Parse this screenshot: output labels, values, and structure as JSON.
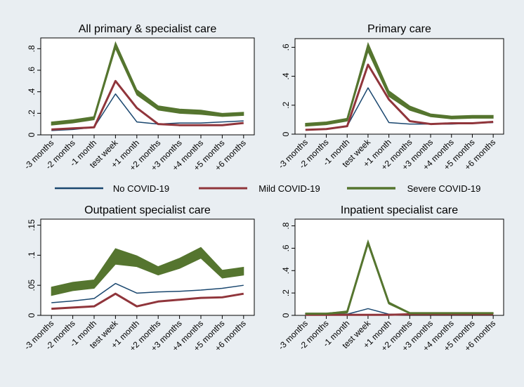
{
  "colors": {
    "no_covid": "#1a476f",
    "mild_covid": "#90353b",
    "severe_covid": "#55752f",
    "severe_band": "#55752f",
    "background": "#e9eef2",
    "plot_background": "#ffffff"
  },
  "legend": {
    "items": [
      "No COVID-19",
      "Mild COVID-19",
      "Severe COVID-19"
    ],
    "placement": "center"
  },
  "chart_data": [
    {
      "type": "line",
      "title": "All primary & specialist care",
      "xlabel": "",
      "ylabel": "",
      "categories": [
        "-3 months",
        "-2 months",
        "-1 month",
        "test week",
        "+1 month",
        "+2 months",
        "+3 months",
        "+4 months",
        "+5 months",
        "+6 months"
      ],
      "ylim": [
        0,
        0.9
      ],
      "yticks": [
        0,
        0.2,
        0.4,
        0.6,
        0.8
      ],
      "ytick_labels": [
        "0",
        ".2",
        ".4",
        ".6",
        ".8"
      ],
      "series": [
        {
          "name": "No COVID-19",
          "values": [
            0.04,
            0.05,
            0.07,
            0.38,
            0.12,
            0.1,
            0.11,
            0.11,
            0.12,
            0.13
          ]
        },
        {
          "name": "Mild COVID-19",
          "values": [
            0.05,
            0.06,
            0.07,
            0.5,
            0.25,
            0.1,
            0.09,
            0.09,
            0.09,
            0.11
          ]
        },
        {
          "name": "Severe COVID-19",
          "values": [
            0.11,
            0.13,
            0.16,
            0.83,
            0.39,
            0.25,
            0.22,
            0.21,
            0.19,
            0.2
          ],
          "band": [
            [
              0.09,
              0.12
            ],
            [
              0.11,
              0.14
            ],
            [
              0.14,
              0.17
            ],
            [
              0.8,
              0.86
            ],
            [
              0.37,
              0.42
            ],
            [
              0.23,
              0.27
            ],
            [
              0.2,
              0.24
            ],
            [
              0.19,
              0.23
            ],
            [
              0.17,
              0.2
            ],
            [
              0.18,
              0.21
            ]
          ]
        }
      ]
    },
    {
      "type": "line",
      "title": "Primary care",
      "xlabel": "",
      "ylabel": "",
      "categories": [
        "-3 months",
        "-2 months",
        "-1 month",
        "test week",
        "+1 month",
        "+2 months",
        "+3 months",
        "+4 months",
        "+5 months",
        "+6 months"
      ],
      "ylim": [
        0,
        0.66
      ],
      "yticks": [
        0,
        0.2,
        0.4,
        0.6
      ],
      "ytick_labels": [
        "0",
        ".2",
        ".4",
        ".6"
      ],
      "series": [
        {
          "name": "No COVID-19",
          "values": [
            0.03,
            0.035,
            0.055,
            0.32,
            0.08,
            0.07,
            0.07,
            0.07,
            0.075,
            0.08
          ]
        },
        {
          "name": "Mild COVID-19",
          "values": [
            0.03,
            0.035,
            0.055,
            0.48,
            0.24,
            0.09,
            0.07,
            0.075,
            0.075,
            0.085
          ]
        },
        {
          "name": "Severe COVID-19",
          "values": [
            0.065,
            0.075,
            0.1,
            0.6,
            0.28,
            0.18,
            0.13,
            0.115,
            0.12,
            0.12
          ],
          "band": [
            [
              0.055,
              0.075
            ],
            [
              0.065,
              0.085
            ],
            [
              0.09,
              0.11
            ],
            [
              0.57,
              0.63
            ],
            [
              0.26,
              0.3
            ],
            [
              0.165,
              0.195
            ],
            [
              0.12,
              0.14
            ],
            [
              0.105,
              0.125
            ],
            [
              0.11,
              0.13
            ],
            [
              0.11,
              0.13
            ]
          ]
        }
      ]
    },
    {
      "type": "line",
      "title": "Outpatient specialist care",
      "xlabel": "",
      "ylabel": "",
      "categories": [
        "-3 months",
        "-2 months",
        "-1 month",
        "test week",
        "+1 month",
        "+2 months",
        "+3 months",
        "+4 months",
        "+5 months",
        "+6 months"
      ],
      "ylim": [
        0,
        0.16
      ],
      "yticks": [
        0,
        0.05,
        0.1,
        0.15
      ],
      "ytick_labels": [
        "0",
        ".05",
        ".1",
        ".15"
      ],
      "series": [
        {
          "name": "No COVID-19",
          "values": [
            0.021,
            0.024,
            0.028,
            0.053,
            0.037,
            0.039,
            0.04,
            0.042,
            0.045,
            0.05
          ]
        },
        {
          "name": "Mild COVID-19",
          "values": [
            0.011,
            0.013,
            0.015,
            0.036,
            0.015,
            0.023,
            0.026,
            0.029,
            0.03,
            0.036
          ]
        },
        {
          "name": "Severe COVID-19",
          "values": [
            0.04,
            0.048,
            0.052,
            0.098,
            0.092,
            0.074,
            0.087,
            0.104,
            0.068,
            0.073
          ],
          "band": [
            [
              0.033,
              0.047
            ],
            [
              0.041,
              0.055
            ],
            [
              0.045,
              0.059
            ],
            [
              0.085,
              0.111
            ],
            [
              0.081,
              0.099
            ],
            [
              0.067,
              0.081
            ],
            [
              0.078,
              0.095
            ],
            [
              0.095,
              0.113
            ],
            [
              0.062,
              0.075
            ],
            [
              0.067,
              0.08
            ]
          ]
        }
      ]
    },
    {
      "type": "line",
      "title": "Inpatient specialist care",
      "xlabel": "",
      "ylabel": "",
      "categories": [
        "-3 months",
        "-2 months",
        "-1 month",
        "test week",
        "+1 month",
        "+2 months",
        "+3 months",
        "+4 months",
        "+5 months",
        "+6 months"
      ],
      "ylim": [
        0,
        0.86
      ],
      "yticks": [
        0,
        0.2,
        0.4,
        0.6,
        0.8
      ],
      "ytick_labels": [
        "0",
        ".2",
        ".4",
        ".6",
        ".8"
      ],
      "series": [
        {
          "name": "No COVID-19",
          "values": [
            0.01,
            0.01,
            0.01,
            0.06,
            0.01,
            0.01,
            0.01,
            0.01,
            0.01,
            0.01
          ]
        },
        {
          "name": "Mild COVID-19",
          "values": [
            0.005,
            0.005,
            0.005,
            0.005,
            0.005,
            0.01,
            0.01,
            0.01,
            0.01,
            0.01
          ]
        },
        {
          "name": "Severe COVID-19",
          "values": [
            0.015,
            0.015,
            0.03,
            0.65,
            0.11,
            0.02,
            0.02,
            0.02,
            0.02,
            0.02
          ],
          "band": [
            [
              0.01,
              0.02
            ],
            [
              0.01,
              0.02
            ],
            [
              0.02,
              0.04
            ],
            [
              0.63,
              0.67
            ],
            [
              0.1,
              0.12
            ],
            [
              0.015,
              0.025
            ],
            [
              0.015,
              0.025
            ],
            [
              0.015,
              0.025
            ],
            [
              0.015,
              0.025
            ],
            [
              0.015,
              0.025
            ]
          ]
        }
      ]
    }
  ]
}
